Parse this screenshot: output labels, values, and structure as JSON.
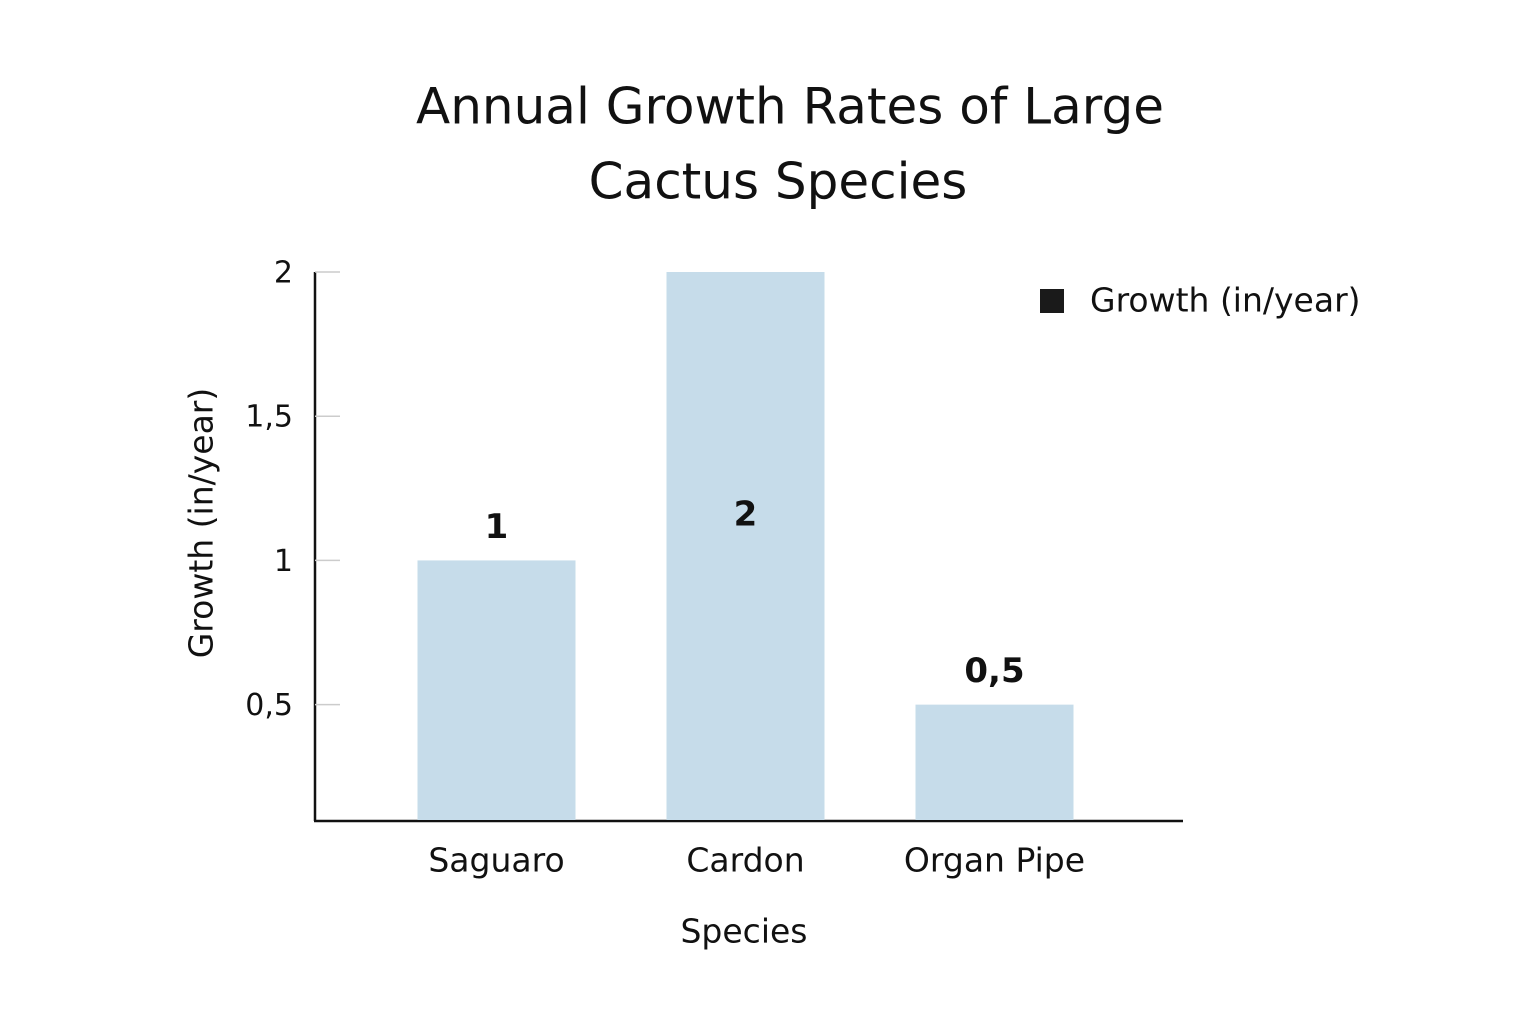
{
  "chart_data": {
    "type": "bar",
    "title": [
      "Annual Growth Rates of Large",
      "Cactus Species"
    ],
    "x_label": "Species",
    "y_label": "Growth (in/year)",
    "categories": [
      "Saguaro",
      "Cardon",
      "Organ Pipe"
    ],
    "series": [
      {
        "name": "Growth (in/year)",
        "color": "#c6dcea",
        "values": [
          1,
          2,
          0.5
        ],
        "value_labels": [
          "1",
          "2",
          "0,5"
        ]
      }
    ],
    "ylim": [
      0.1,
      2
    ],
    "yticks": [
      {
        "value": 0.5,
        "label": "0,5"
      },
      1,
      {
        "value": 1.5,
        "label": "1,5"
      },
      2
    ],
    "grid": false,
    "legend": {
      "position": "upper right",
      "marker_color": "#1a1a1a"
    }
  }
}
